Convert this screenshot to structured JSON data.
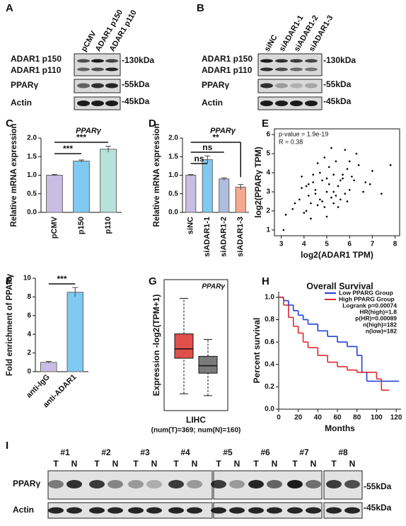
{
  "blots": {
    "A": {
      "label": "A",
      "lanes": [
        "pCMV",
        "ADAR1 p150",
        "ADAR1 p110"
      ],
      "rows": [
        "ADAR1 p150",
        "ADAR1 p110",
        "PPARγ",
        "Actin"
      ],
      "sizes": [
        "-130kDa",
        "-55kDa",
        "-45kDa"
      ]
    },
    "B": {
      "label": "B",
      "lanes": [
        "siNC",
        "siADAR1-1",
        "siADAR1-2",
        "siADAR1-3"
      ],
      "rows": [
        "ADAR1 p150",
        "ADAR1 p110",
        "PPARγ",
        "Actin"
      ],
      "sizes": [
        "-130kDa",
        "-55kDa",
        "-45kDa"
      ]
    },
    "I": {
      "label": "I",
      "patients": [
        "#1",
        "#2",
        "#3",
        "#4",
        "#5",
        "#6",
        "#7",
        "#8"
      ],
      "lane_labels": [
        "T",
        "N"
      ],
      "rows": [
        "PPARγ",
        "Actin"
      ],
      "sizes": [
        "-55kDa",
        "-45kDa"
      ]
    }
  },
  "chart_data": [
    {
      "type": "bar",
      "label": "C",
      "title": "PPARγ",
      "ylabel": "Relative mRNA expression",
      "categories": [
        "pCMV",
        "p150",
        "p110"
      ],
      "values": [
        1.0,
        1.38,
        1.7
      ],
      "errors": [
        0.02,
        0.03,
        0.08
      ],
      "colors": [
        "#c9bde3",
        "#80c9f2",
        "#b7e2da"
      ],
      "ylim": [
        0,
        2.0
      ],
      "yticks": [
        {
          "value": 0,
          "label": "0.0"
        },
        {
          "value": 0.5,
          "label": "0.5"
        },
        {
          "value": 1,
          "label": "1.0"
        },
        {
          "value": 1.5,
          "label": "1.5"
        },
        {
          "value": 2,
          "label": "2.0"
        }
      ],
      "annotations": [
        "***",
        "***"
      ]
    },
    {
      "type": "bar",
      "label": "D",
      "title": "PPARγ",
      "ylabel": "Relative mRNA expression",
      "categories": [
        "siNC",
        "siADAR1-1",
        "siADAR1-2",
        "siADAR1-3"
      ],
      "values": [
        1.0,
        1.42,
        0.9,
        0.68
      ],
      "errors": [
        0.02,
        0.1,
        0.03,
        0.07
      ],
      "colors": [
        "#c9bde3",
        "#80c9f2",
        "#aebde0",
        "#f6a98f"
      ],
      "ylim": [
        0,
        2.0
      ],
      "yticks": [
        {
          "value": 0,
          "label": "0.0"
        },
        {
          "value": 0.5,
          "label": "0.5"
        },
        {
          "value": 1,
          "label": "1.0"
        },
        {
          "value": 1.5,
          "label": "1.5"
        },
        {
          "value": 2,
          "label": "2.0"
        }
      ],
      "annotations": [
        "ns",
        "ns",
        "**"
      ]
    },
    {
      "type": "scatter",
      "label": "E",
      "xlabel": "log2(ADAR1 TPM)",
      "ylabel": "log2(PPARγ TPM)",
      "annotations": [
        "p-value = 1.9e-19",
        "R = 0.38"
      ],
      "x": [
        4.2,
        4.5,
        4.8,
        5.1,
        5.3,
        4.9,
        5.6,
        5.9,
        4.1,
        3.8,
        4.4,
        4.7,
        5.0,
        5.2,
        5.5,
        5.8,
        6.1,
        6.4,
        4.3,
        4.6,
        5.4,
        5.7,
        6.0,
        3.6,
        3.9,
        4.0,
        5.1,
        4.8,
        5.3,
        6.3,
        6.7,
        7.0,
        7.4,
        3.2,
        3.5,
        4.9,
        5.6,
        5.2,
        4.5,
        6.2,
        5.0,
        4.7,
        5.8,
        4.4,
        5.5,
        6.6,
        3.9,
        4.2,
        5.3,
        5.9,
        4.6,
        5.0,
        6.0,
        4.3,
        5.4,
        4.1,
        5.7,
        6.9,
        7.8,
        3.1
      ],
      "values": [
        2.8,
        3.1,
        2.5,
        3.4,
        3.9,
        2.2,
        3.6,
        4.2,
        2.0,
        2.6,
        3.5,
        4.0,
        3.0,
        2.7,
        3.3,
        2.9,
        3.8,
        4.4,
        1.6,
        2.3,
        4.6,
        3.7,
        3.1,
        2.4,
        3.2,
        1.9,
        4.3,
        3.6,
        2.4,
        5.0,
        3.5,
        4.1,
        2.9,
        1.8,
        2.1,
        4.8,
        2.6,
        5.3,
        2.9,
        3.6,
        1.7,
        2.6,
        5.2,
        3.9,
        2.2,
        3.0,
        3.8,
        3.4,
        3.0,
        2.5,
        4.5,
        3.7,
        4.6,
        2.4,
        2.8,
        3.3,
        3.9,
        3.4,
        4.4,
        1.0
      ],
      "color": "#000000",
      "xlim": [
        2.7,
        8.2
      ],
      "xticks": [
        3,
        4,
        5,
        6,
        7,
        8
      ],
      "ylim": [
        0.7,
        6.3
      ],
      "yticks": [
        1,
        2,
        3,
        4,
        5,
        6
      ]
    },
    {
      "type": "bar",
      "label": "F",
      "ylabel": "Fold enrichment of PPARγ",
      "categories": [
        "anti-IgG",
        "anti-ADAR1"
      ],
      "values": [
        1.0,
        8.5
      ],
      "errors": [
        0.1,
        0.5
      ],
      "colors": [
        "#c9bde3",
        "#80c9f2"
      ],
      "ylim": [
        0,
        10
      ],
      "yticks": [
        0,
        2,
        4,
        6,
        8,
        10
      ],
      "annotations": [
        "***"
      ]
    },
    {
      "type": "box",
      "label": "G",
      "title": "PPARγ",
      "ylabel": "Expression -log2(TPM+1)",
      "xlabel": "LIHC",
      "subtitle": "(num(T)=369; num(N)=160)",
      "boxes": [
        {
          "color": "#e0504a",
          "min": 0.9,
          "q1": 2.8,
          "median": 3.3,
          "q3": 4.1,
          "max": 6.0
        },
        {
          "color": "#7a7a7a",
          "min": 0.8,
          "q1": 2.0,
          "median": 2.4,
          "q3": 2.9,
          "max": 3.8
        }
      ],
      "ylim": [
        0,
        7
      ]
    },
    {
      "type": "km",
      "label": "H",
      "title": "Overall Survival",
      "xlabel": "Months",
      "ylabel": "Percent survival",
      "annotations": [
        "Logrank p=0.00074",
        "HR(high)=1.8",
        "p(HR)=0.00089",
        "n(high)=182",
        "n(low)=182"
      ],
      "series": [
        {
          "name": "Low PPARG Group",
          "color": "#1f3fd6",
          "x": [
            0,
            5,
            10,
            15,
            20,
            25,
            30,
            40,
            50,
            60,
            70,
            80,
            85,
            90,
            100,
            110,
            120
          ],
          "values": [
            1,
            0.97,
            0.93,
            0.88,
            0.84,
            0.8,
            0.76,
            0.7,
            0.65,
            0.6,
            0.56,
            0.48,
            0.33,
            0.25,
            0.25,
            0.25,
            0.25
          ]
        },
        {
          "name": "High PPARG Group",
          "color": "#e0262b",
          "x": [
            0,
            5,
            10,
            15,
            20,
            25,
            30,
            40,
            50,
            60,
            70,
            80,
            90,
            100,
            105,
            110
          ],
          "values": [
            1,
            0.93,
            0.82,
            0.74,
            0.68,
            0.6,
            0.55,
            0.48,
            0.42,
            0.38,
            0.35,
            0.33,
            0.33,
            0.27,
            0.17,
            0.17
          ]
        }
      ],
      "xlim": [
        0,
        125
      ],
      "xticks": [
        0,
        20,
        40,
        60,
        80,
        100,
        120
      ],
      "ylim": [
        0,
        1.05
      ],
      "yticks": [
        {
          "value": 0,
          "label": "0.0"
        },
        {
          "value": 0.2,
          "label": "0.2"
        },
        {
          "value": 0.4,
          "label": "0.4"
        },
        {
          "value": 0.6,
          "label": "0.6"
        },
        {
          "value": 0.8,
          "label": "0.8"
        },
        {
          "value": 1,
          "label": "1.0"
        }
      ]
    }
  ]
}
